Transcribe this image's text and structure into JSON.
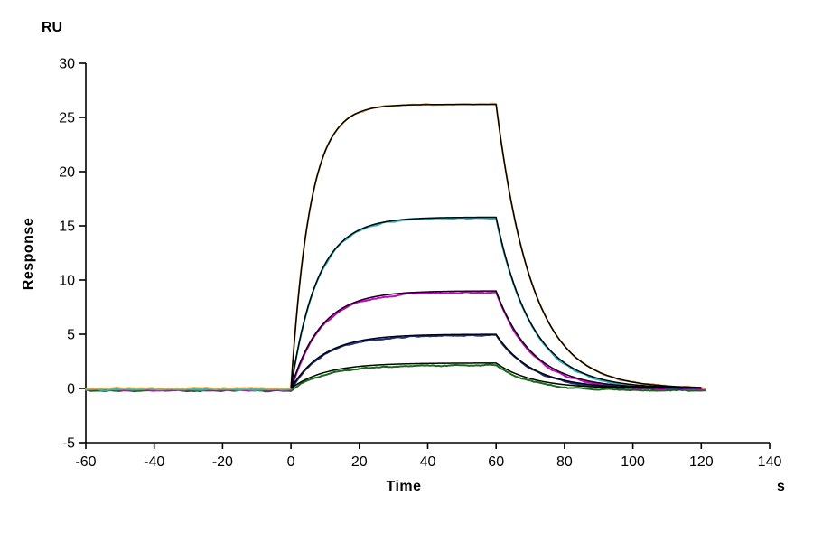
{
  "figure": {
    "background": "#FFFFFF",
    "axis_color": "#000000"
  },
  "chart_data": {
    "type": "line",
    "title": "",
    "xlabel": "Time",
    "x_unit": "s",
    "ylabel": "Response",
    "y_unit": "RU",
    "xlim": [
      -60,
      140
    ],
    "ylim": [
      -5,
      30
    ],
    "x_ticks": [
      -60,
      -40,
      -20,
      0,
      20,
      40,
      60,
      80,
      100,
      120,
      140
    ],
    "y_ticks": [
      -5,
      0,
      5,
      10,
      15,
      20,
      25,
      30
    ],
    "grid": false,
    "legend": "none",
    "phases": {
      "baseline_start": -60,
      "association_start": 0,
      "dissociation_start": 60,
      "trace_end": 121,
      "fit_end": 120
    },
    "fit_color": "#000000",
    "noise_ru": 0.12,
    "series": [
      {
        "name": "trace-1-highest",
        "color": "#E6A23C",
        "plateau_ru": 26.2,
        "k_obs": 0.18,
        "k_off": 0.095,
        "baseline_ru": 0.0
      },
      {
        "name": "trace-2",
        "color": "#1FB8C9",
        "plateau_ru": 15.8,
        "k_obs": 0.13,
        "k_off": 0.095,
        "baseline_ru": -0.1
      },
      {
        "name": "trace-3",
        "color": "#CC00CC",
        "plateau_ru": 9.0,
        "k_obs": 0.115,
        "k_off": 0.095,
        "baseline_ru": -0.15
      },
      {
        "name": "trace-4",
        "color": "#1F3080",
        "plateau_ru": 5.0,
        "k_obs": 0.105,
        "k_off": 0.095,
        "baseline_ru": -0.1
      },
      {
        "name": "trace-5-lowest",
        "color": "#166B16",
        "plateau_ru": 2.35,
        "k_obs": 0.1,
        "k_off": 0.095,
        "baseline_ru": -0.2
      }
    ]
  }
}
